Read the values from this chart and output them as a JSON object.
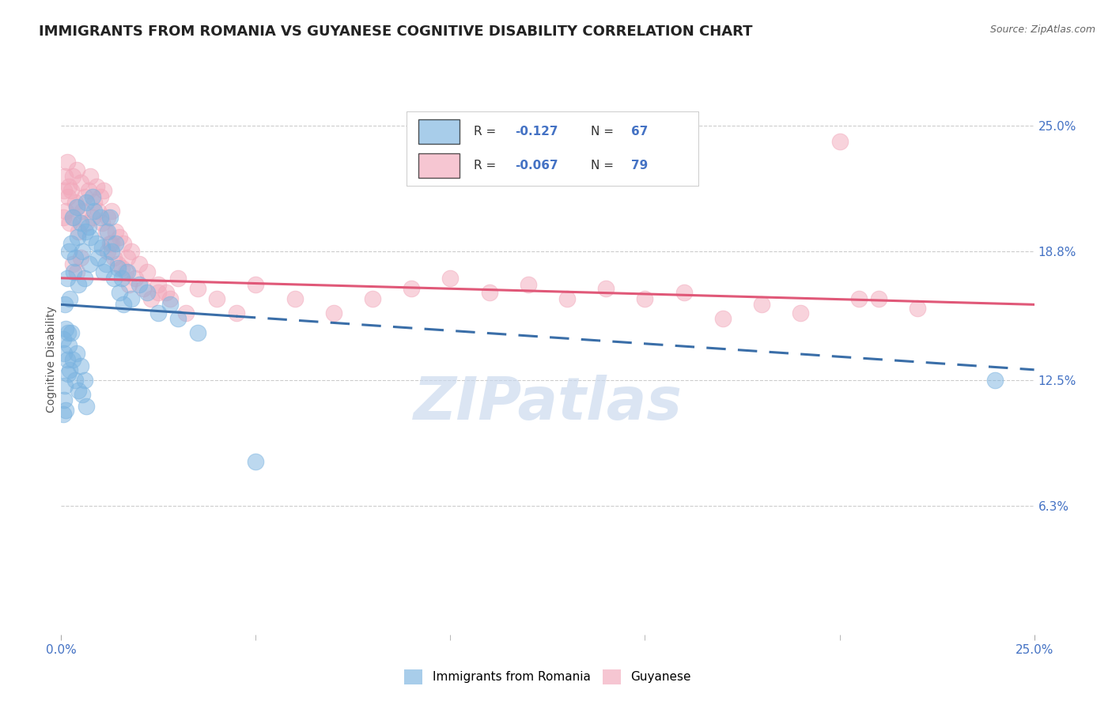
{
  "title": "IMMIGRANTS FROM ROMANIA VS GUYANESE COGNITIVE DISABILITY CORRELATION CHART",
  "source": "Source: ZipAtlas.com",
  "ylabel": "Cognitive Disability",
  "right_yticks": [
    6.3,
    12.5,
    18.8,
    25.0
  ],
  "right_ytick_labels": [
    "6.3%",
    "12.5%",
    "18.8%",
    "25.0%"
  ],
  "xlim": [
    0.0,
    25.0
  ],
  "ylim": [
    0.0,
    27.0
  ],
  "legend_bottom": [
    "Immigrants from Romania",
    "Guyanese"
  ],
  "watermark": "ZIPatlas",
  "blue_scatter": [
    [
      0.05,
      14.5
    ],
    [
      0.08,
      13.8
    ],
    [
      0.1,
      16.2
    ],
    [
      0.12,
      15.0
    ],
    [
      0.15,
      17.5
    ],
    [
      0.18,
      14.8
    ],
    [
      0.2,
      18.8
    ],
    [
      0.22,
      16.5
    ],
    [
      0.25,
      19.2
    ],
    [
      0.3,
      20.5
    ],
    [
      0.32,
      17.8
    ],
    [
      0.35,
      18.5
    ],
    [
      0.4,
      21.0
    ],
    [
      0.42,
      19.5
    ],
    [
      0.45,
      17.2
    ],
    [
      0.5,
      20.2
    ],
    [
      0.55,
      18.8
    ],
    [
      0.6,
      17.5
    ],
    [
      0.62,
      19.8
    ],
    [
      0.65,
      21.2
    ],
    [
      0.7,
      20.0
    ],
    [
      0.72,
      18.2
    ],
    [
      0.75,
      19.5
    ],
    [
      0.8,
      21.5
    ],
    [
      0.85,
      20.8
    ],
    [
      0.9,
      19.2
    ],
    [
      0.95,
      18.5
    ],
    [
      1.0,
      20.5
    ],
    [
      1.05,
      19.0
    ],
    [
      1.1,
      17.8
    ],
    [
      1.15,
      18.2
    ],
    [
      1.2,
      19.8
    ],
    [
      1.25,
      20.5
    ],
    [
      1.3,
      18.8
    ],
    [
      1.35,
      17.5
    ],
    [
      1.4,
      19.2
    ],
    [
      1.45,
      18.0
    ],
    [
      1.5,
      16.8
    ],
    [
      1.55,
      17.5
    ],
    [
      1.6,
      16.2
    ],
    [
      1.7,
      17.8
    ],
    [
      1.8,
      16.5
    ],
    [
      2.0,
      17.2
    ],
    [
      2.2,
      16.8
    ],
    [
      2.5,
      15.8
    ],
    [
      2.8,
      16.2
    ],
    [
      3.0,
      15.5
    ],
    [
      3.5,
      14.8
    ],
    [
      0.05,
      10.8
    ],
    [
      0.08,
      11.5
    ],
    [
      0.1,
      12.2
    ],
    [
      0.12,
      11.0
    ],
    [
      0.15,
      13.5
    ],
    [
      0.18,
      12.8
    ],
    [
      0.2,
      14.2
    ],
    [
      0.22,
      13.0
    ],
    [
      0.25,
      14.8
    ],
    [
      0.3,
      13.5
    ],
    [
      0.35,
      12.5
    ],
    [
      0.4,
      13.8
    ],
    [
      0.45,
      12.0
    ],
    [
      0.5,
      13.2
    ],
    [
      0.55,
      11.8
    ],
    [
      0.6,
      12.5
    ],
    [
      0.65,
      11.2
    ],
    [
      5.0,
      8.5
    ],
    [
      24.0,
      12.5
    ]
  ],
  "pink_scatter": [
    [
      0.05,
      20.5
    ],
    [
      0.08,
      21.8
    ],
    [
      0.1,
      22.5
    ],
    [
      0.12,
      20.8
    ],
    [
      0.15,
      23.2
    ],
    [
      0.18,
      21.5
    ],
    [
      0.2,
      22.0
    ],
    [
      0.22,
      20.2
    ],
    [
      0.25,
      21.8
    ],
    [
      0.3,
      22.5
    ],
    [
      0.32,
      20.5
    ],
    [
      0.35,
      21.2
    ],
    [
      0.4,
      22.8
    ],
    [
      0.42,
      21.0
    ],
    [
      0.45,
      19.8
    ],
    [
      0.5,
      22.2
    ],
    [
      0.55,
      20.8
    ],
    [
      0.6,
      21.5
    ],
    [
      0.65,
      20.2
    ],
    [
      0.7,
      21.8
    ],
    [
      0.75,
      22.5
    ],
    [
      0.8,
      20.5
    ],
    [
      0.85,
      21.2
    ],
    [
      0.9,
      22.0
    ],
    [
      0.95,
      20.8
    ],
    [
      1.0,
      21.5
    ],
    [
      1.05,
      20.2
    ],
    [
      1.1,
      21.8
    ],
    [
      1.15,
      19.8
    ],
    [
      1.2,
      20.5
    ],
    [
      1.25,
      19.2
    ],
    [
      1.3,
      20.8
    ],
    [
      1.35,
      18.5
    ],
    [
      1.4,
      19.8
    ],
    [
      1.45,
      18.2
    ],
    [
      1.5,
      19.5
    ],
    [
      1.55,
      18.0
    ],
    [
      1.6,
      19.2
    ],
    [
      1.65,
      17.8
    ],
    [
      1.7,
      18.5
    ],
    [
      1.75,
      17.2
    ],
    [
      1.8,
      18.8
    ],
    [
      1.9,
      17.5
    ],
    [
      2.0,
      18.2
    ],
    [
      2.1,
      17.0
    ],
    [
      2.2,
      17.8
    ],
    [
      2.3,
      16.5
    ],
    [
      2.5,
      17.2
    ],
    [
      2.7,
      16.8
    ],
    [
      3.0,
      17.5
    ],
    [
      3.5,
      17.0
    ],
    [
      4.0,
      16.5
    ],
    [
      4.5,
      15.8
    ],
    [
      5.0,
      17.2
    ],
    [
      6.0,
      16.5
    ],
    [
      7.0,
      15.8
    ],
    [
      8.0,
      16.5
    ],
    [
      9.0,
      17.0
    ],
    [
      10.0,
      17.5
    ],
    [
      11.0,
      16.8
    ],
    [
      12.0,
      17.2
    ],
    [
      13.0,
      16.5
    ],
    [
      14.0,
      17.0
    ],
    [
      15.0,
      16.5
    ],
    [
      16.0,
      16.8
    ],
    [
      17.0,
      15.5
    ],
    [
      18.0,
      16.2
    ],
    [
      19.0,
      15.8
    ],
    [
      20.0,
      24.2
    ],
    [
      21.0,
      16.5
    ],
    [
      0.3,
      18.2
    ],
    [
      0.4,
      17.8
    ],
    [
      0.5,
      18.5
    ],
    [
      1.2,
      18.8
    ],
    [
      1.3,
      19.2
    ],
    [
      2.8,
      16.5
    ],
    [
      3.2,
      15.8
    ],
    [
      2.5,
      16.8
    ],
    [
      20.5,
      16.5
    ],
    [
      22.0,
      16.0
    ]
  ],
  "blue_trendline": {
    "x_start": 0.0,
    "y_start": 16.2,
    "x_end": 25.0,
    "y_end": 13.0
  },
  "pink_trendline": {
    "x_start": 0.0,
    "y_start": 17.5,
    "x_end": 25.0,
    "y_end": 16.2
  },
  "blue_solid_end_x": 4.5,
  "blue_color": "#7ab3e0",
  "pink_color": "#f2a8bb",
  "blue_trendline_color": "#3a6ea8",
  "pink_trendline_color": "#e05878",
  "background_color": "#ffffff",
  "grid_color": "#cccccc",
  "title_fontsize": 13,
  "axis_label_fontsize": 10,
  "tick_fontsize": 11
}
